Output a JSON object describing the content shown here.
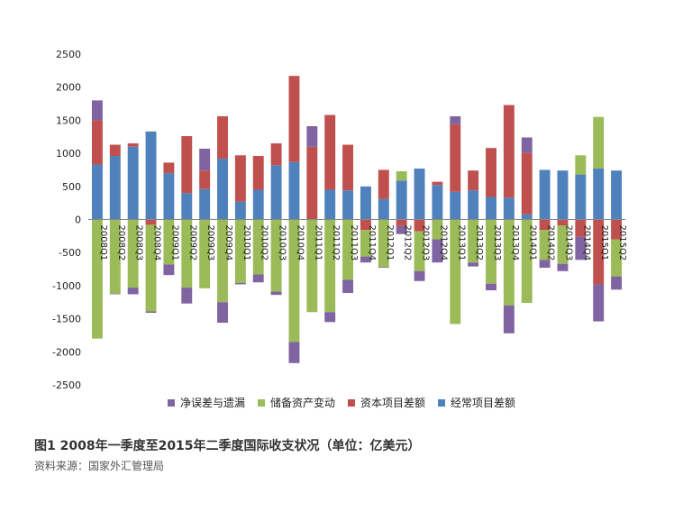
{
  "chart_data": {
    "type": "bar",
    "stacked": true,
    "categories": [
      "2008Q1",
      "2008Q2",
      "2008Q3",
      "2008Q4",
      "2009Q1",
      "2009Q2",
      "2009Q3",
      "2009Q4",
      "2010Q1",
      "2010Q2",
      "2010Q3",
      "2010Q4",
      "2011Q1",
      "2011Q2",
      "2011Q3",
      "2011Q4",
      "2012Q1",
      "2012Q2",
      "2012Q3",
      "2012Q4",
      "2013Q1",
      "2013Q2",
      "2013Q3",
      "2013Q4",
      "2014Q1",
      "2014Q2",
      "2014Q3",
      "2014Q4",
      "2015Q1",
      "2015Q2"
    ],
    "series": [
      {
        "name": "经常项目差额",
        "color": "#4f81bd",
        "values": [
          830,
          960,
          1100,
          1330,
          700,
          400,
          460,
          920,
          270,
          450,
          820,
          870,
          0,
          450,
          440,
          500,
          310,
          590,
          770,
          520,
          420,
          440,
          340,
          330,
          80,
          750,
          740,
          680,
          770,
          740
        ]
      },
      {
        "name": "资本项目差额",
        "color": "#c0504d",
        "values": [
          670,
          170,
          50,
          -80,
          160,
          860,
          280,
          640,
          700,
          510,
          330,
          1300,
          1100,
          1130,
          690,
          -160,
          440,
          -100,
          -180,
          50,
          1020,
          300,
          740,
          1400,
          930,
          -160,
          -90,
          -260,
          -980,
          -300
        ]
      },
      {
        "name": "储备资产变动",
        "color": "#9bbb59",
        "values": [
          -1800,
          -1120,
          -1030,
          -1310,
          -680,
          -1030,
          -1040,
          -1250,
          -960,
          -830,
          -1090,
          -1850,
          -1400,
          -1400,
          -910,
          -400,
          -720,
          140,
          -600,
          -300,
          -1580,
          -650,
          -970,
          -1300,
          -1260,
          -450,
          -580,
          290,
          780,
          -560
        ]
      },
      {
        "name": "净误差与遗漏",
        "color": "#8064a2",
        "values": [
          300,
          -10,
          -100,
          -20,
          -160,
          -240,
          330,
          -310,
          -20,
          -120,
          -50,
          -320,
          310,
          -150,
          -200,
          -90,
          -10,
          -120,
          -150,
          -350,
          120,
          -60,
          -100,
          -420,
          230,
          -120,
          -110,
          -350,
          -560,
          -200
        ]
      }
    ],
    "ylim": [
      -2500,
      2500
    ],
    "yticks": [
      "2500",
      "2000",
      "1500",
      "1000",
      "500",
      "0",
      "-500",
      "-1000",
      "-1500",
      "-2000",
      "-2500"
    ],
    "legend_position": "bottom",
    "grid": false
  },
  "legend": [
    {
      "label": "净误差与遗漏",
      "color": "#8064a2"
    },
    {
      "label": "储备资产变动",
      "color": "#9bbb59"
    },
    {
      "label": "资本项目差额",
      "color": "#c0504d"
    },
    {
      "label": "经常项目差额",
      "color": "#4f81bd"
    }
  ],
  "caption": "图1  2008年一季度至2015年二季度国际收支状况（单位：亿美元）",
  "source": "资料来源：国家外汇管理局"
}
